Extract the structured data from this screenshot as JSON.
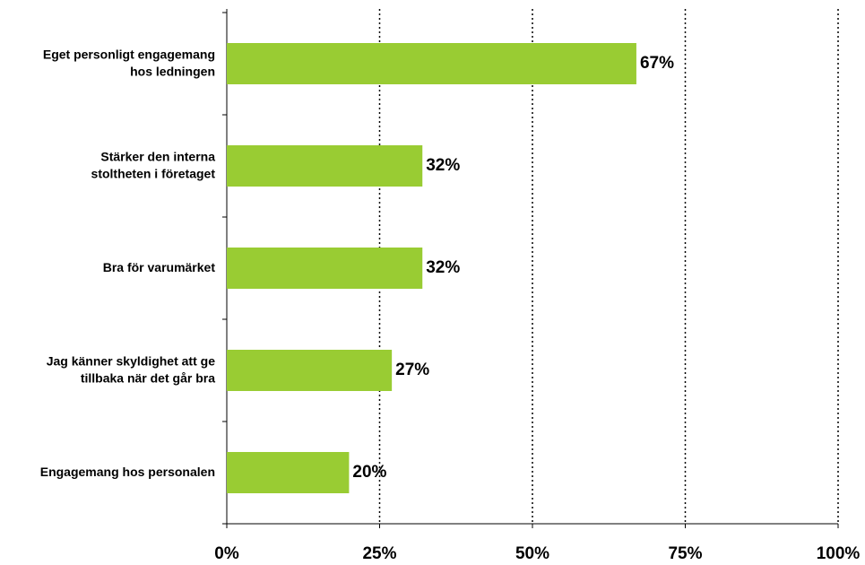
{
  "chart_data": {
    "type": "hbar",
    "categories": [
      [
        "Eget personligt engagemang",
        "hos ledningen"
      ],
      [
        "Stärker den interna",
        "stoltheten i företaget"
      ],
      [
        "Bra för varumärket"
      ],
      [
        "Jag känner skyldighet att ge",
        "tillbaka när det går bra"
      ],
      [
        "Engagemang hos personalen"
      ]
    ],
    "values": [
      67,
      32,
      32,
      27,
      20
    ],
    "value_labels": [
      "67%",
      "32%",
      "32%",
      "27%",
      "20%"
    ],
    "color": "#99cc33",
    "xlim": [
      0,
      100
    ],
    "xticks": [
      {
        "value": 0,
        "label": "0%"
      },
      {
        "value": 25,
        "label": "25%"
      },
      {
        "value": 50,
        "label": "50%"
      },
      {
        "value": 75,
        "label": "75%"
      },
      {
        "value": 100,
        "label": "100%"
      }
    ],
    "grid": true
  }
}
